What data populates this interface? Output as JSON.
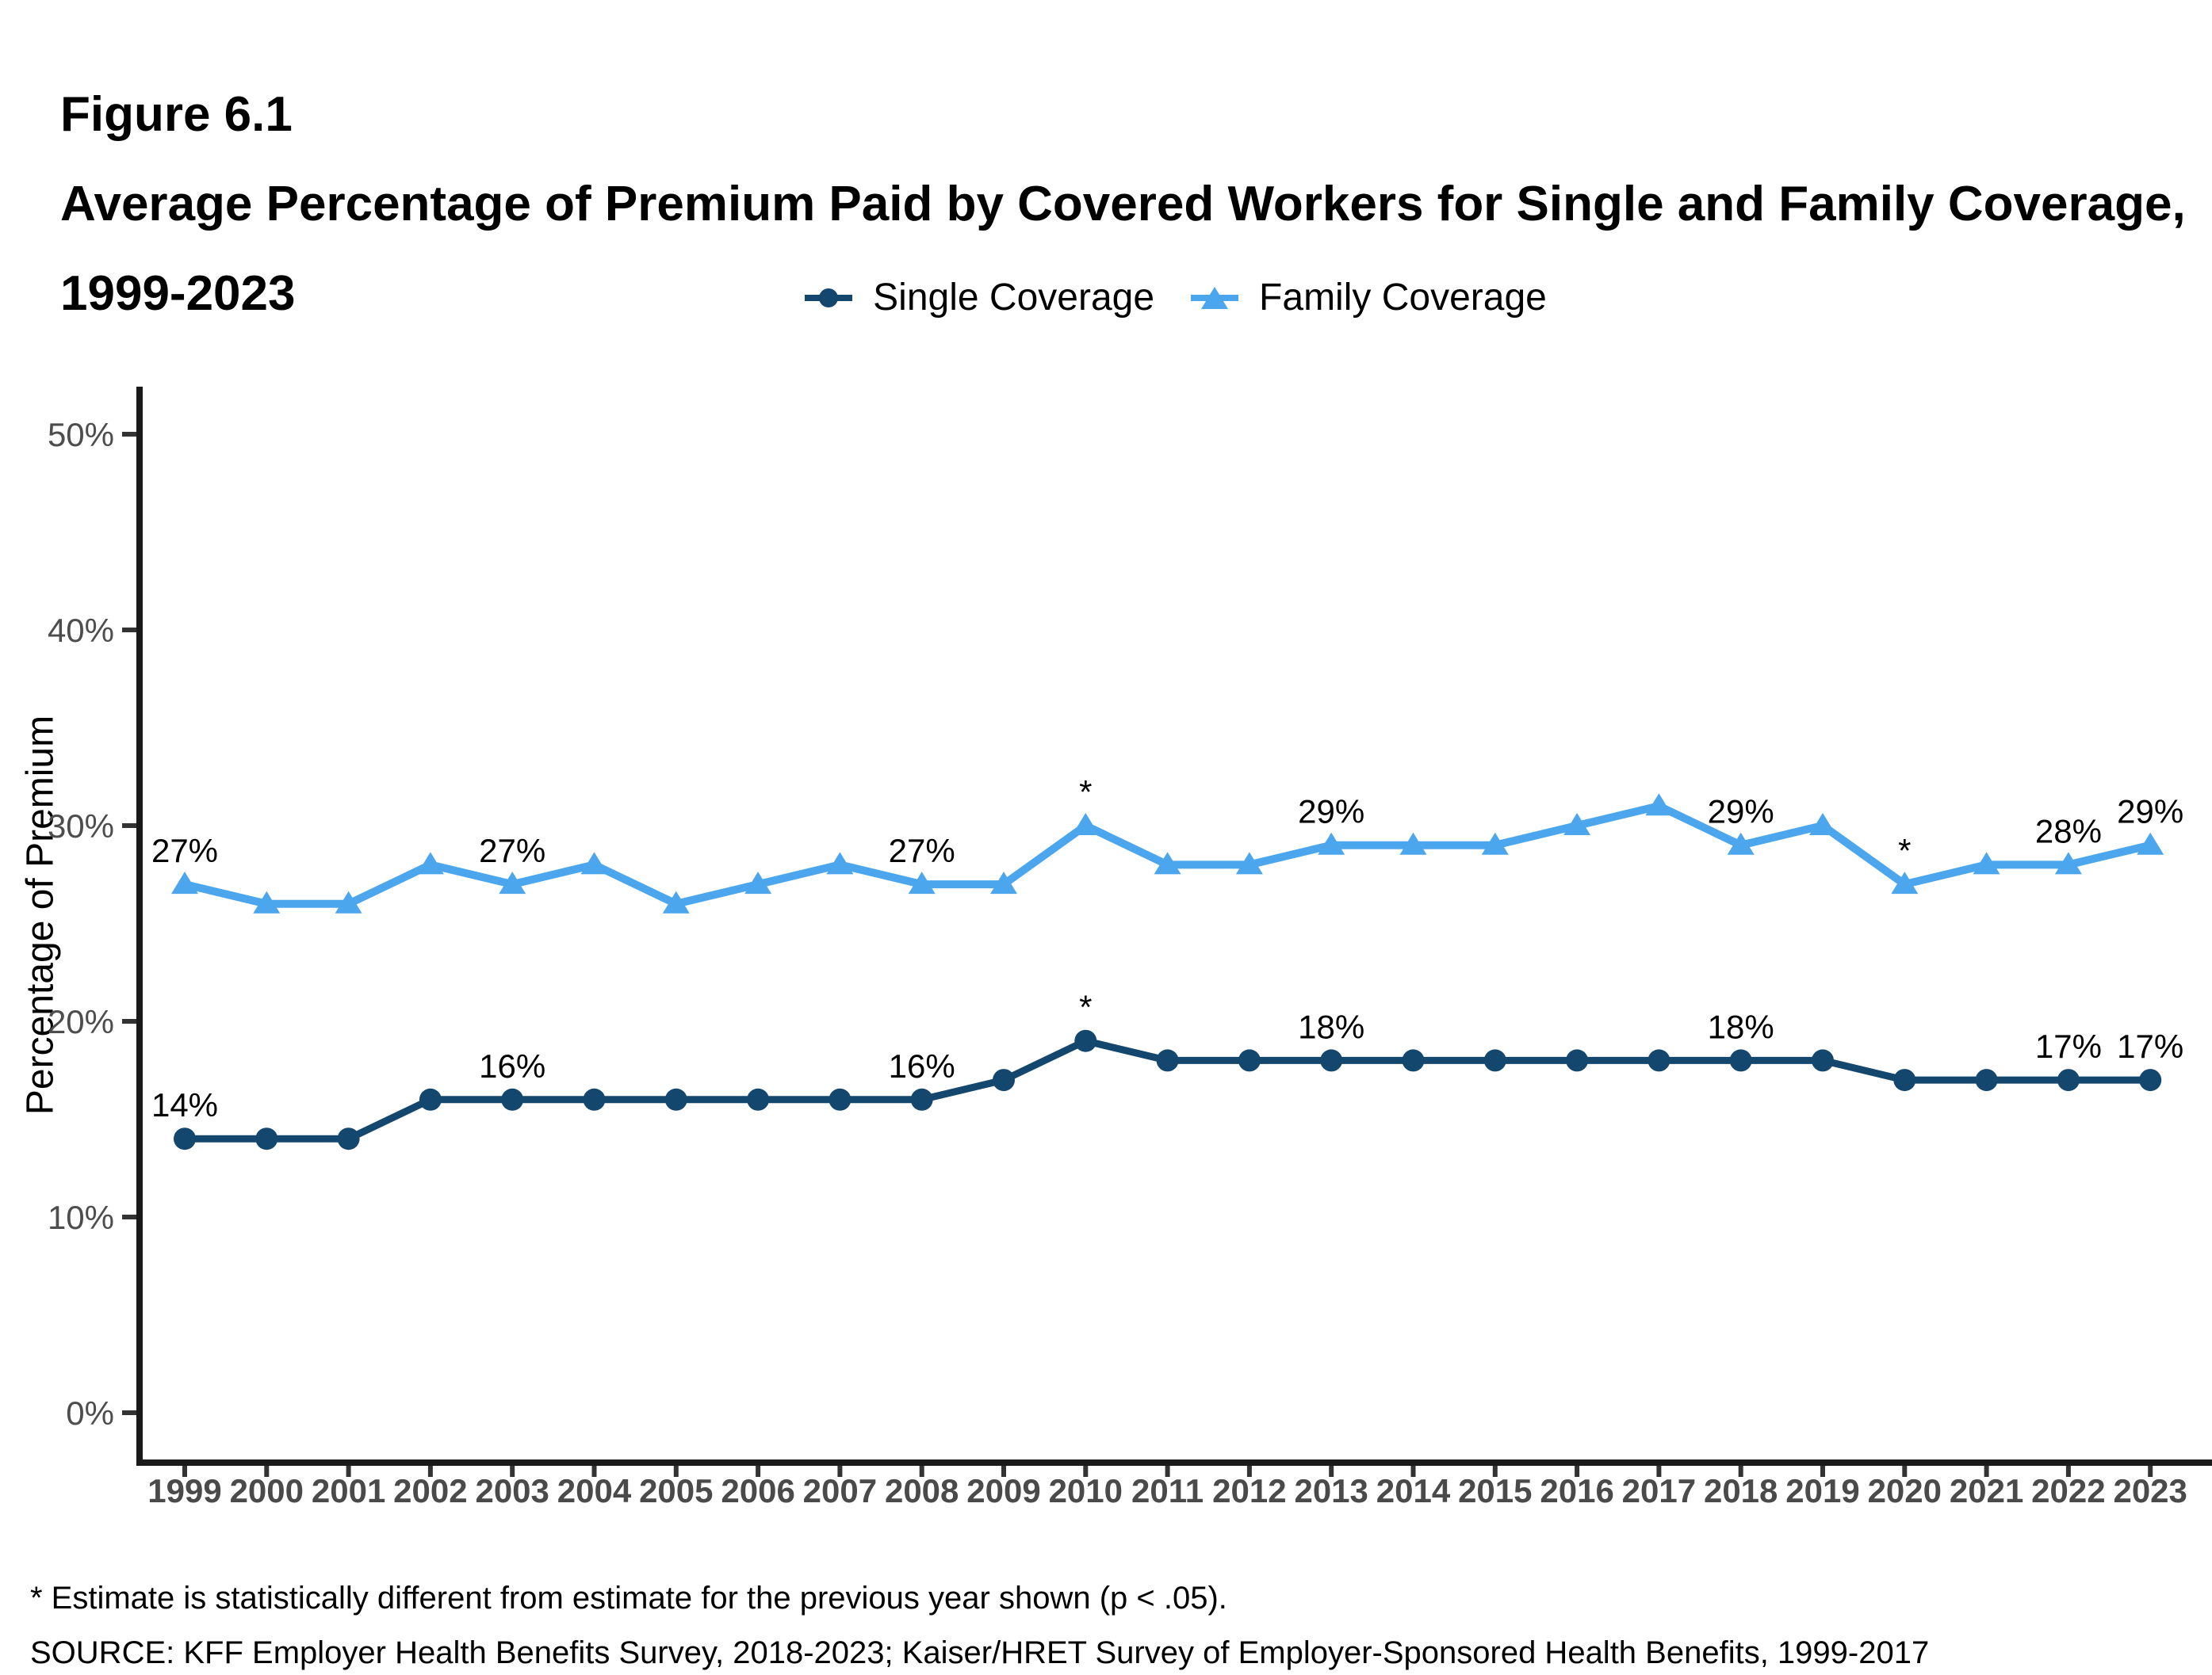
{
  "header": {
    "figure_label": "Figure 6.1",
    "title_lines": [
      "Average Percentage of Premium Paid by Covered Workers for Single and Family Coverage,",
      "1999-2023"
    ]
  },
  "legend": {
    "items": [
      {
        "label": "Single Coverage",
        "color": "#14476E",
        "marker": "circle"
      },
      {
        "label": "Family Coverage",
        "color": "#4BA6EE",
        "marker": "triangle"
      }
    ]
  },
  "chart_data": {
    "type": "line",
    "x": [
      1999,
      2000,
      2001,
      2002,
      2003,
      2004,
      2005,
      2006,
      2007,
      2008,
      2009,
      2010,
      2011,
      2012,
      2013,
      2014,
      2015,
      2016,
      2017,
      2018,
      2019,
      2020,
      2021,
      2022,
      2023
    ],
    "series": [
      {
        "name": "Single Coverage",
        "color": "#14476E",
        "marker": "circle",
        "values": [
          14,
          14,
          14,
          16,
          16,
          16,
          16,
          16,
          16,
          16,
          17,
          19,
          18,
          18,
          18,
          18,
          18,
          18,
          18,
          18,
          18,
          17,
          17,
          17,
          17
        ],
        "point_labels": [
          {
            "year": 1999,
            "text": "14%"
          },
          {
            "year": 2003,
            "text": "16%"
          },
          {
            "year": 2008,
            "text": "16%"
          },
          {
            "year": 2010,
            "text": "*"
          },
          {
            "year": 2013,
            "text": "18%"
          },
          {
            "year": 2018,
            "text": "18%"
          },
          {
            "year": 2022,
            "text": "17%"
          },
          {
            "year": 2023,
            "text": "17%"
          }
        ]
      },
      {
        "name": "Family Coverage",
        "color": "#4BA6EE",
        "marker": "triangle",
        "values": [
          27,
          26,
          26,
          28,
          27,
          28,
          26,
          27,
          28,
          27,
          27,
          30,
          28,
          28,
          29,
          29,
          29,
          30,
          31,
          29,
          30,
          27,
          28,
          28,
          29
        ],
        "point_labels": [
          {
            "year": 1999,
            "text": "27%"
          },
          {
            "year": 2003,
            "text": "27%"
          },
          {
            "year": 2008,
            "text": "27%"
          },
          {
            "year": 2010,
            "text": "*"
          },
          {
            "year": 2013,
            "text": "29%"
          },
          {
            "year": 2018,
            "text": "29%"
          },
          {
            "year": 2020,
            "text": "*"
          },
          {
            "year": 2022,
            "text": "28%"
          },
          {
            "year": 2023,
            "text": "29%"
          }
        ]
      }
    ],
    "ylabel": "Percentage of Premium",
    "xlabel": "",
    "ylim": [
      0,
      50
    ],
    "yticks": [
      "0%",
      "10%",
      "20%",
      "30%",
      "40%",
      "50%"
    ],
    "grid": false,
    "legend_position": "top-center",
    "axis_color": "#1a1a1a",
    "tick_label_color": "#4d4d4d"
  },
  "footer": {
    "note": "* Estimate is statistically different from estimate for the previous year shown (p < .05).",
    "source": "SOURCE: KFF Employer Health Benefits Survey, 2018-2023; Kaiser/HRET Survey of Employer-Sponsored Health Benefits, 1999-2017"
  }
}
